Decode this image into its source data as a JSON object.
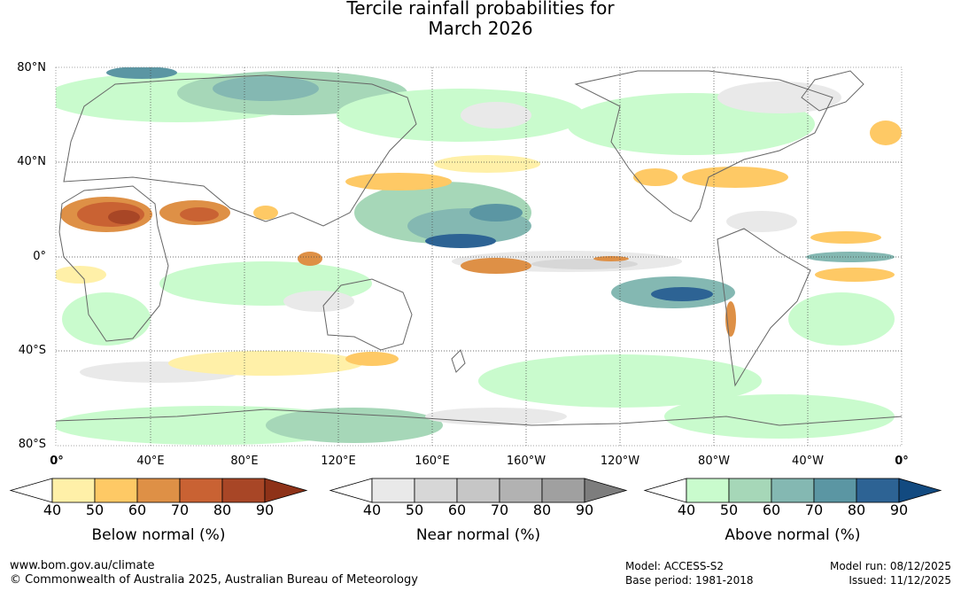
{
  "title": {
    "line1": "Tercile rainfall probabilities for",
    "line2": "March 2026"
  },
  "axes": {
    "lat_labels": [
      "80°N",
      "40°N",
      "0°",
      "40°S",
      "80°S"
    ],
    "lon_labels": [
      "0°",
      "40°E",
      "80°E",
      "120°E",
      "160°E",
      "160°W",
      "120°W",
      "80°W",
      "40°W",
      "0°"
    ]
  },
  "legends": [
    {
      "name": "below",
      "title": "Below normal (%)",
      "ticks": [
        "40",
        "50",
        "60",
        "70",
        "80",
        "90"
      ],
      "colors": [
        "#fff0a8",
        "#fec965",
        "#de9046",
        "#c96233",
        "#a84626",
        "#8e3218"
      ]
    },
    {
      "name": "near",
      "title": "Near normal (%)",
      "ticks": [
        "40",
        "50",
        "60",
        "70",
        "80",
        "90"
      ],
      "colors": [
        "#e9e9e9",
        "#d7d7d7",
        "#c6c6c6",
        "#b2b2b2",
        "#a0a0a0",
        "#7d7d7d"
      ]
    },
    {
      "name": "above",
      "title": "Above normal (%)",
      "ticks": [
        "40",
        "50",
        "60",
        "70",
        "80",
        "90"
      ],
      "colors": [
        "#c9fbcd",
        "#a6d7b8",
        "#84b8b2",
        "#5b96a3",
        "#2d6394",
        "#124a80"
      ]
    }
  ],
  "footer": {
    "url": "www.bom.gov.au/climate",
    "copyright": "© Commonwealth of Australia 2025, Australian Bureau of Meteorology",
    "model": "Model: ACCESS-S2",
    "base_period": "Base period: 1981-2018",
    "model_run": "Model run: 08/12/2025",
    "issued": "Issued: 11/12/2025"
  }
}
